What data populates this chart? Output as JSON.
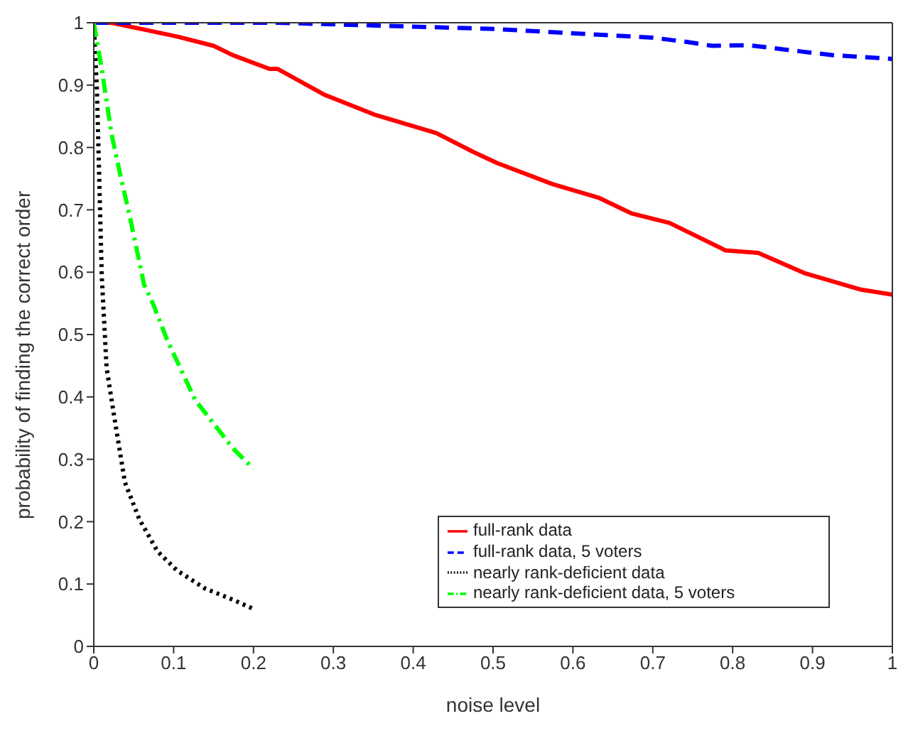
{
  "chart_data": {
    "type": "line",
    "xlabel": "noise level",
    "ylabel": "probability of finding the correct order",
    "xlim": [
      0,
      1
    ],
    "ylim": [
      0,
      1
    ],
    "xticks": [
      0,
      0.1,
      0.2,
      0.3,
      0.4,
      0.5,
      0.6,
      0.7,
      0.8,
      0.9,
      1
    ],
    "yticks": [
      0,
      0.1,
      0.2,
      0.3,
      0.4,
      0.5,
      0.6,
      0.7,
      0.8,
      0.9,
      1
    ],
    "legend": "bottom right",
    "series": [
      {
        "name": "full-rank data",
        "color": "#ff0000",
        "line_style": "solid",
        "x": [
          0,
          0.022,
          0.063,
          0.104,
          0.15,
          0.174,
          0.22,
          0.23,
          0.288,
          0.353,
          0.429,
          0.475,
          0.505,
          0.575,
          0.633,
          0.674,
          0.721,
          0.791,
          0.832,
          0.891,
          0.961,
          1
        ],
        "values": [
          1,
          1,
          0.989,
          0.978,
          0.963,
          0.948,
          0.926,
          0.926,
          0.885,
          0.852,
          0.823,
          0.793,
          0.775,
          0.741,
          0.719,
          0.694,
          0.679,
          0.635,
          0.631,
          0.598,
          0.572,
          0.564
        ]
      },
      {
        "name": "full-rank data, 5 voters",
        "color": "#0000ff",
        "line_style": "dashed",
        "x": [
          0,
          0.23,
          0.502,
          0.601,
          0.7,
          0.744,
          0.774,
          0.82,
          0.885,
          0.926,
          1
        ],
        "values": [
          1,
          1,
          0.99,
          0.983,
          0.976,
          0.969,
          0.963,
          0.964,
          0.954,
          0.948,
          0.942
        ]
      },
      {
        "name": "nearly rank-deficient data",
        "color": "#000000",
        "line_style": "dotted",
        "x": [
          0,
          0.004,
          0.007,
          0.01,
          0.016,
          0.025,
          0.039,
          0.057,
          0.08,
          0.104,
          0.139,
          0.174,
          0.2
        ],
        "values": [
          1,
          0.89,
          0.742,
          0.594,
          0.447,
          0.373,
          0.263,
          0.204,
          0.152,
          0.122,
          0.093,
          0.075,
          0.06
        ]
      },
      {
        "name": "nearly rank-deficient data, 5 voters",
        "color": "#00ff00",
        "line_style": "dashdot",
        "x": [
          0,
          0.01,
          0.022,
          0.033,
          0.045,
          0.063,
          0.074,
          0.092,
          0.127,
          0.174,
          0.188,
          0.2
        ],
        "values": [
          1,
          0.926,
          0.823,
          0.757,
          0.69,
          0.58,
          0.55,
          0.491,
          0.395,
          0.318,
          0.3,
          0.285
        ]
      }
    ]
  }
}
